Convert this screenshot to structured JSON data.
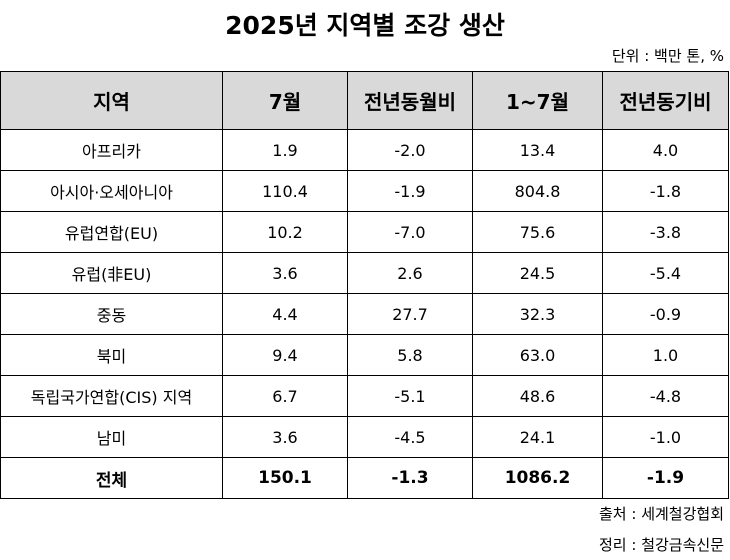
{
  "title": "2025년 지역별 조강 생산",
  "unit": "단위 : 백만 톤, %",
  "table": {
    "headers": [
      "지역",
      "7월",
      "전년동월비",
      "1~7월",
      "전년동기비"
    ],
    "rows": [
      [
        "아프리카",
        "1.9",
        "-2.0",
        "13.4",
        "4.0"
      ],
      [
        "아시아·오세아니아",
        "110.4",
        "-1.9",
        "804.8",
        "-1.8"
      ],
      [
        "유럽연합(EU)",
        "10.2",
        "-7.0",
        "75.6",
        "-3.8"
      ],
      [
        "유럽(非EU)",
        "3.6",
        "2.6",
        "24.5",
        "-5.4"
      ],
      [
        "중동",
        "4.4",
        "27.7",
        "32.3",
        "-0.9"
      ],
      [
        "북미",
        "9.4",
        "5.8",
        "63.0",
        "1.0"
      ],
      [
        "독립국가연합(CIS) 지역",
        "6.7",
        "-5.1",
        "48.6",
        "-4.8"
      ],
      [
        "남미",
        "3.6",
        "-4.5",
        "24.1",
        "-1.0"
      ]
    ],
    "total": [
      "전체",
      "150.1",
      "-1.3",
      "1086.2",
      "-1.9"
    ]
  },
  "source": "출처 : 세계철강협회",
  "arranged_by": "정리 : 철강금속신문"
}
